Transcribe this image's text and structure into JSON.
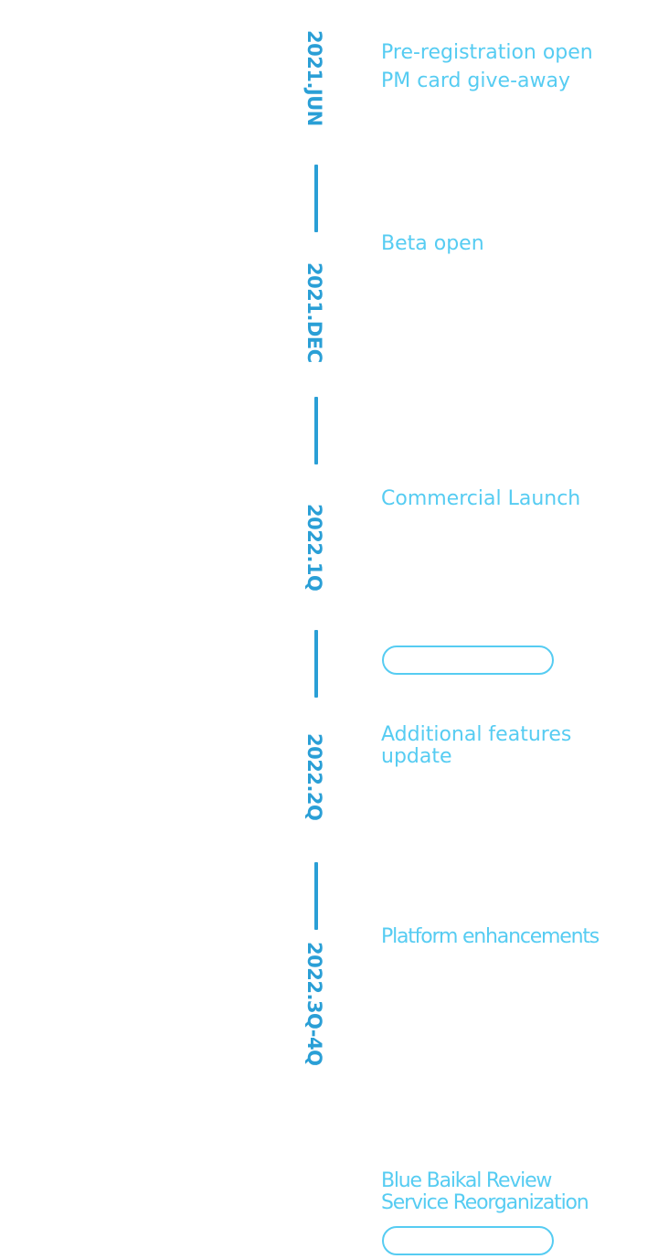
{
  "timeline": {
    "milestones": [
      {
        "date": "2021.JUN",
        "event_lines": [
          "Pre-registration open",
          "PM card give-away"
        ]
      },
      {
        "date": "2021.DEC",
        "event_lines": [
          "Beta open"
        ]
      },
      {
        "date": "2022.1Q",
        "event_lines": [
          "Commercial Launch"
        ]
      },
      {
        "date": "2022.2Q",
        "event_lines": [
          "Additional features",
          "update"
        ]
      },
      {
        "date": "2022.3Q-4Q",
        "event_lines": [
          "Platform enhancements"
        ]
      }
    ],
    "extra_event_lines": [
      "Blue Baikal Review",
      "Service Reorganization"
    ]
  },
  "colors": {
    "date_text": "#2a9fd6",
    "connector": "#2a9fd6",
    "event_text": "#56ccf2",
    "pill_border": "#56ccf2"
  }
}
